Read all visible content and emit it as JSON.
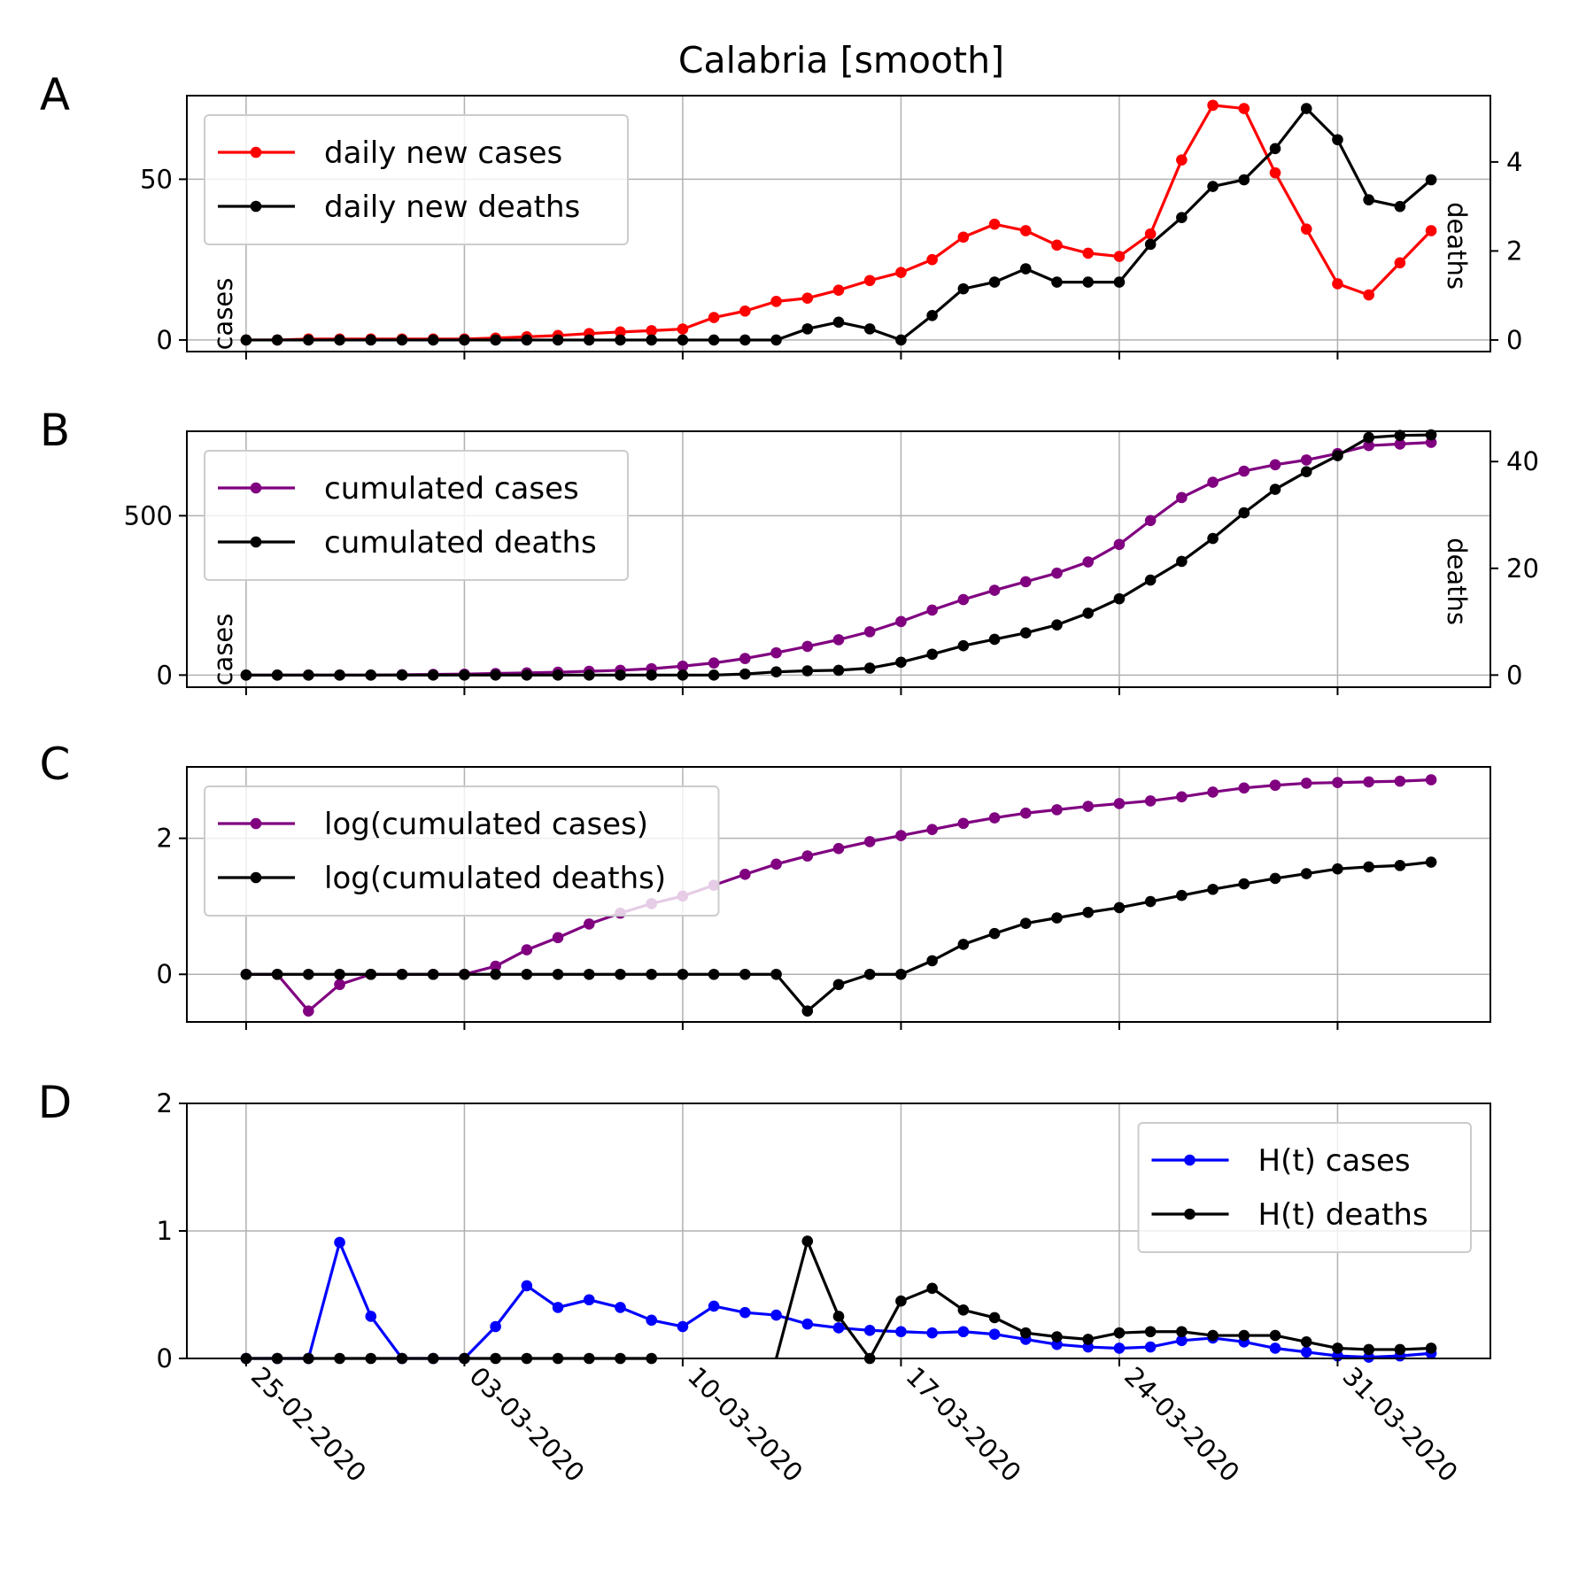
{
  "title": "Calabria [smooth]",
  "x_tick_labels": [
    "25-02-2020",
    "03-03-2020",
    "10-03-2020",
    "17-03-2020",
    "24-03-2020",
    "31-03-2020"
  ],
  "chart_data": [
    {
      "panel": "A",
      "type": "line",
      "title": "Calabria [smooth]",
      "x": [
        0,
        1,
        2,
        3,
        4,
        5,
        6,
        7,
        8,
        9,
        10,
        11,
        12,
        13,
        14,
        15,
        16,
        17,
        18,
        19,
        20,
        21,
        22,
        23,
        24,
        25,
        26,
        27,
        28,
        29,
        30,
        31,
        32,
        33,
        34,
        35,
        36,
        37,
        38
      ],
      "x_dates_note": "day 0 = 25-02-2020 through day 38 = 03-04-2020",
      "xlim": [
        -1.9,
        39.9
      ],
      "ylim": [
        -3.6,
        76
      ],
      "y2lim": [
        -0.26,
        5.49
      ],
      "y_ticks": [
        0,
        50
      ],
      "y2_ticks": [
        0,
        2,
        4
      ],
      "ylabel": "cases",
      "y2label": "deaths",
      "grid": true,
      "legend_position": "upper-left",
      "series": [
        {
          "name": "daily new cases",
          "color": "#ff0000",
          "axis": "left",
          "values": [
            0,
            0,
            0.3,
            0.3,
            0.3,
            0.3,
            0.3,
            0.3,
            0.6,
            1,
            1.4,
            2,
            2.5,
            2.9,
            3.4,
            7,
            9,
            12,
            13,
            15.5,
            18.5,
            21,
            25,
            32,
            36,
            34,
            29.5,
            27,
            26,
            33,
            56,
            73,
            72,
            52,
            34.5,
            17.5,
            14,
            24,
            34
          ]
        },
        {
          "name": "daily new deaths",
          "color": "#000000",
          "axis": "right",
          "values": [
            0,
            0,
            0,
            0,
            0,
            0,
            0,
            0,
            0,
            0,
            0,
            0,
            0,
            0,
            0,
            0,
            0,
            0,
            0.25,
            0.4,
            0.25,
            0,
            0.55,
            1.15,
            1.3,
            1.6,
            1.3,
            1.3,
            1.3,
            2.15,
            2.75,
            3.45,
            3.6,
            4.3,
            5.2,
            4.5,
            3.15,
            3.0,
            3.6
          ]
        }
      ]
    },
    {
      "panel": "B",
      "type": "line",
      "x": [
        0,
        1,
        2,
        3,
        4,
        5,
        6,
        7,
        8,
        9,
        10,
        11,
        12,
        13,
        14,
        15,
        16,
        17,
        18,
        19,
        20,
        21,
        22,
        23,
        24,
        25,
        26,
        27,
        28,
        29,
        30,
        31,
        32,
        33,
        34,
        35,
        36,
        37,
        38
      ],
      "xlim": [
        -1.9,
        39.9
      ],
      "ylim": [
        -38,
        765
      ],
      "y2lim": [
        -2.27,
        45.68
      ],
      "y_ticks": [
        0,
        500
      ],
      "y2_ticks": [
        0,
        20,
        40
      ],
      "ylabel": "cases",
      "y2label": "deaths",
      "grid": true,
      "legend_position": "upper-left",
      "series": [
        {
          "name": "cumulated cases",
          "color": "#800080",
          "axis": "left",
          "values": [
            0,
            0,
            0,
            0,
            0,
            1,
            2,
            3,
            5,
            7,
            9,
            12,
            15,
            20,
            28,
            38,
            52,
            70,
            90,
            111,
            136,
            168,
            204,
            237,
            266,
            293,
            320,
            355,
            410,
            485,
            557,
            605,
            640,
            660,
            675,
            695,
            720,
            725,
            730
          ]
        },
        {
          "name": "cumulated deaths",
          "color": "#000000",
          "axis": "right",
          "values": [
            0,
            0,
            0,
            0,
            0,
            0,
            0,
            0,
            0,
            0,
            0,
            0,
            0,
            0,
            0,
            0,
            0.2,
            0.6,
            0.8,
            0.9,
            1.3,
            2.4,
            3.9,
            5.5,
            6.7,
            7.9,
            9.4,
            11.6,
            14.3,
            17.8,
            21.3,
            25.6,
            30.4,
            34.8,
            38.1,
            41.1,
            44.5,
            44.9,
            45.0
          ]
        }
      ]
    },
    {
      "panel": "C",
      "type": "line",
      "x": [
        0,
        1,
        2,
        3,
        4,
        5,
        6,
        7,
        8,
        9,
        10,
        11,
        12,
        13,
        14,
        15,
        16,
        17,
        18,
        19,
        20,
        21,
        22,
        23,
        24,
        25,
        26,
        27,
        28,
        29,
        30,
        31,
        32,
        33,
        34,
        35,
        36,
        37,
        38
      ],
      "xlim": [
        -1.9,
        39.9
      ],
      "ylim": [
        -0.7,
        3.05
      ],
      "y_ticks": [
        0,
        2
      ],
      "grid": true,
      "legend_position": "upper-left",
      "series": [
        {
          "name": "log(cumulated cases)",
          "color": "#800080",
          "values": [
            0,
            0,
            -0.54,
            -0.15,
            0,
            0,
            0,
            0,
            0.12,
            0.36,
            0.54,
            0.74,
            0.9,
            1.04,
            1.15,
            1.31,
            1.47,
            1.62,
            1.74,
            1.85,
            1.95,
            2.04,
            2.13,
            2.22,
            2.3,
            2.37,
            2.42,
            2.47,
            2.51,
            2.55,
            2.61,
            2.68,
            2.74,
            2.78,
            2.81,
            2.82,
            2.83,
            2.84,
            2.86
          ]
        },
        {
          "name": "log(cumulated deaths)",
          "color": "#000000",
          "values": [
            0,
            0,
            0,
            0,
            0,
            0,
            0,
            0,
            0,
            0,
            0,
            0,
            0,
            0,
            0,
            0,
            0,
            0,
            -0.54,
            -0.15,
            0,
            0,
            0.2,
            0.44,
            0.6,
            0.75,
            0.83,
            0.91,
            0.98,
            1.07,
            1.16,
            1.25,
            1.33,
            1.41,
            1.48,
            1.55,
            1.58,
            1.6,
            1.65
          ]
        }
      ]
    },
    {
      "panel": "D",
      "type": "line",
      "x": [
        0,
        1,
        2,
        3,
        4,
        5,
        6,
        7,
        8,
        9,
        10,
        11,
        12,
        13,
        14,
        15,
        16,
        17,
        18,
        19,
        20,
        21,
        22,
        23,
        24,
        25,
        26,
        27,
        28,
        29,
        30,
        31,
        32,
        33,
        34,
        35,
        36,
        37,
        38
      ],
      "xlim": [
        -1.9,
        39.9
      ],
      "ylim": [
        0,
        2
      ],
      "y_ticks": [
        0,
        1,
        2
      ],
      "grid": true,
      "legend_position": "upper-right",
      "series": [
        {
          "name": "H(t) cases",
          "color": "#0000ff",
          "values": [
            0,
            0,
            0,
            0.91,
            0.33,
            0,
            0,
            0,
            0.25,
            0.57,
            0.4,
            0.46,
            0.4,
            0.3,
            0.25,
            0.41,
            0.36,
            0.34,
            0.27,
            0.24,
            0.22,
            0.21,
            0.2,
            0.21,
            0.19,
            0.15,
            0.11,
            0.09,
            0.08,
            0.09,
            0.14,
            0.16,
            0.13,
            0.08,
            0.05,
            0.02,
            0.01,
            0.02,
            0.04
          ]
        },
        {
          "name": "H(t) deaths",
          "color": "#000000",
          "values": [
            0,
            0,
            0,
            0,
            0,
            0,
            0,
            0,
            0,
            0,
            0,
            0,
            0,
            0,
            null,
            null,
            null,
            null,
            0.92,
            0.33,
            0,
            0.45,
            0.55,
            0.38,
            0.32,
            0.2,
            0.17,
            0.15,
            0.2,
            0.21,
            0.21,
            0.18,
            0.18,
            0.18,
            0.13,
            0.08,
            0.07,
            0.07,
            0.08
          ],
          "gaps": [
            [
              17,
              18
            ]
          ],
          "note": "line does not connect between day 13 and the rise to day 18"
        }
      ]
    }
  ]
}
